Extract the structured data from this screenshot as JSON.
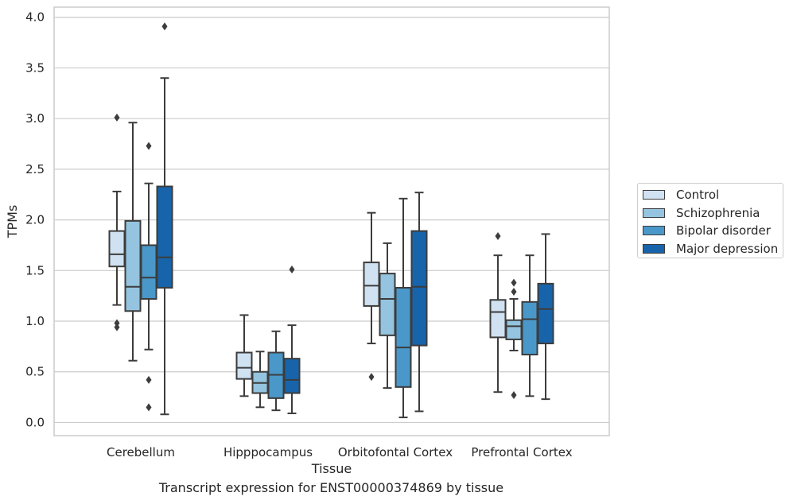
{
  "chart_data": {
    "type": "box",
    "xlabel": "Tissue",
    "ylabel": "TPMs",
    "caption": "Transcript expression for ENST00000374869 by tissue",
    "ylim": [
      -0.13,
      4.1
    ],
    "yticks": [
      0.0,
      0.5,
      1.0,
      1.5,
      2.0,
      2.5,
      3.0,
      3.5,
      4.0
    ],
    "ytick_labels": [
      "0.0",
      "0.5",
      "1.0",
      "1.5",
      "2.0",
      "2.5",
      "3.0",
      "3.5",
      "4.0"
    ],
    "grid": true,
    "legend_position": "right",
    "categories": [
      "Cerebellum",
      "Hipppocampus",
      "Orbitofontal Cortex",
      "Prefrontal Cortex"
    ],
    "series": [
      {
        "name": "Control",
        "color": "#d0e1f2",
        "boxes": [
          {
            "whislo": 1.16,
            "q1": 1.54,
            "med": 1.66,
            "q3": 1.89,
            "whishi": 2.28,
            "fliers": [
              3.01,
              0.98,
              0.94
            ]
          },
          {
            "whislo": 0.26,
            "q1": 0.43,
            "med": 0.54,
            "q3": 0.69,
            "whishi": 1.06,
            "fliers": []
          },
          {
            "whislo": 0.78,
            "q1": 1.15,
            "med": 1.35,
            "q3": 1.58,
            "whishi": 2.07,
            "fliers": [
              0.45
            ]
          },
          {
            "whislo": 0.3,
            "q1": 0.84,
            "med": 1.09,
            "q3": 1.21,
            "whishi": 1.65,
            "fliers": [
              1.84
            ]
          }
        ]
      },
      {
        "name": "Schizophrenia",
        "color": "#94c4df",
        "boxes": [
          {
            "whislo": 0.61,
            "q1": 1.1,
            "med": 1.34,
            "q3": 1.99,
            "whishi": 2.96,
            "fliers": []
          },
          {
            "whislo": 0.15,
            "q1": 0.29,
            "med": 0.39,
            "q3": 0.5,
            "whishi": 0.7,
            "fliers": []
          },
          {
            "whislo": 0.34,
            "q1": 0.86,
            "med": 1.22,
            "q3": 1.47,
            "whishi": 1.77,
            "fliers": []
          },
          {
            "whislo": 0.71,
            "q1": 0.82,
            "med": 0.95,
            "q3": 1.01,
            "whishi": 1.22,
            "fliers": [
              1.38,
              1.29,
              0.27
            ]
          }
        ]
      },
      {
        "name": "Bipolar disorder",
        "color": "#4a98c9",
        "boxes": [
          {
            "whislo": 0.72,
            "q1": 1.22,
            "med": 1.43,
            "q3": 1.75,
            "whishi": 2.36,
            "fliers": [
              2.73,
              0.42,
              0.15
            ]
          },
          {
            "whislo": 0.12,
            "q1": 0.24,
            "med": 0.47,
            "q3": 0.69,
            "whishi": 0.9,
            "fliers": []
          },
          {
            "whislo": 0.05,
            "q1": 0.35,
            "med": 0.74,
            "q3": 1.33,
            "whishi": 2.21,
            "fliers": []
          },
          {
            "whislo": 0.26,
            "q1": 0.67,
            "med": 1.02,
            "q3": 1.19,
            "whishi": 1.65,
            "fliers": []
          }
        ]
      },
      {
        "name": "Major depression",
        "color": "#1764ab",
        "boxes": [
          {
            "whislo": 0.08,
            "q1": 1.33,
            "med": 1.63,
            "q3": 2.33,
            "whishi": 3.4,
            "fliers": [
              3.91
            ]
          },
          {
            "whislo": 0.09,
            "q1": 0.29,
            "med": 0.42,
            "q3": 0.63,
            "whishi": 0.96,
            "fliers": [
              1.51
            ]
          },
          {
            "whislo": 0.11,
            "q1": 0.76,
            "med": 1.34,
            "q3": 1.89,
            "whishi": 2.27,
            "fliers": []
          },
          {
            "whislo": 0.23,
            "q1": 0.78,
            "med": 1.12,
            "q3": 1.37,
            "whishi": 1.86,
            "fliers": []
          }
        ]
      }
    ]
  }
}
